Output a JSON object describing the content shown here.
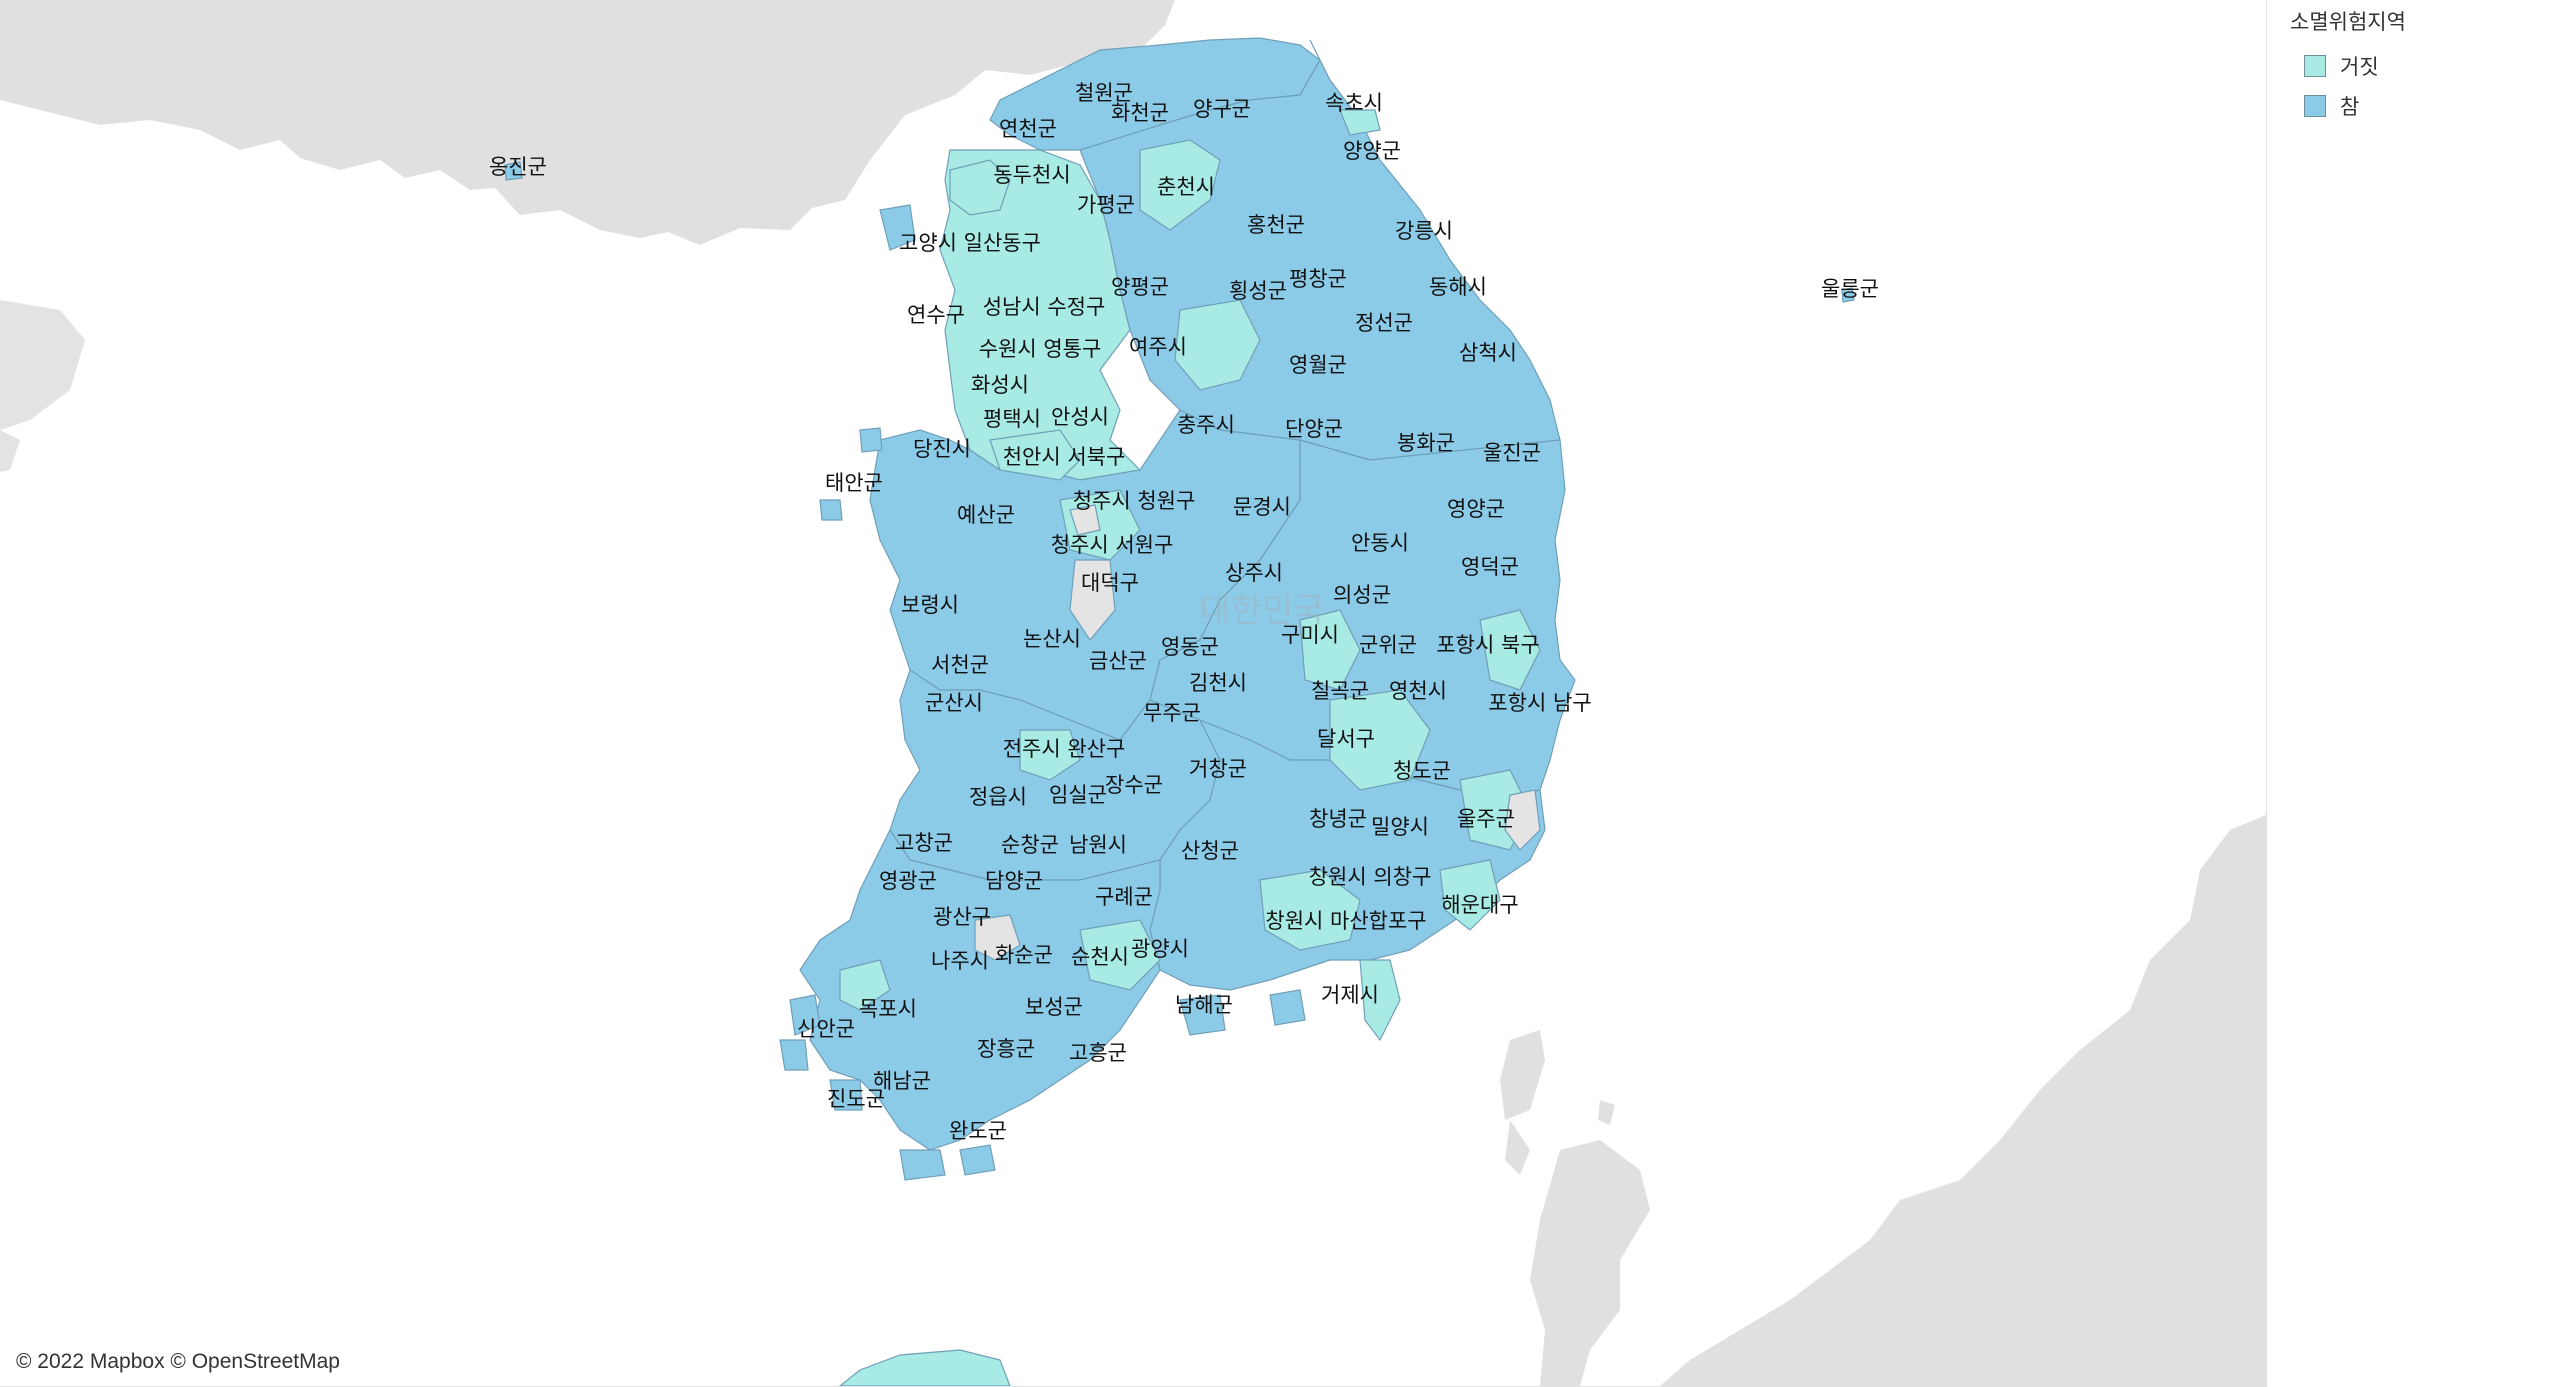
{
  "legend": {
    "title": "소멸위험지역",
    "items": [
      {
        "label": "거짓",
        "color": "#a7ebe4"
      },
      {
        "label": "참",
        "color": "#8ccbe8"
      }
    ]
  },
  "attribution": "© 2022 Mapbox © OpenStreetMap",
  "map_watermark": "대한민국",
  "colors": {
    "land_background": "#e0e0e0",
    "sea": "#ffffff",
    "risk_true": "#8ccbe8",
    "risk_false": "#a7ebe4",
    "no_data": "#e4e4e4",
    "border": "#6f9fb8"
  },
  "regions": [
    {
      "name": "철원군",
      "risk": true
    },
    {
      "name": "화천군",
      "risk": true
    },
    {
      "name": "양구군",
      "risk": true
    },
    {
      "name": "속초시",
      "risk": false
    },
    {
      "name": "연천군",
      "risk": true
    },
    {
      "name": "옹진군",
      "risk": true
    },
    {
      "name": "동두천시",
      "risk": false
    },
    {
      "name": "춘천시",
      "risk": false
    },
    {
      "name": "양양군",
      "risk": true
    },
    {
      "name": "가평군",
      "risk": true
    },
    {
      "name": "홍천군",
      "risk": true
    },
    {
      "name": "강릉시",
      "risk": true
    },
    {
      "name": "고양시 일산동구",
      "risk": false
    },
    {
      "name": "양평군",
      "risk": true
    },
    {
      "name": "횡성군",
      "risk": true
    },
    {
      "name": "평창군",
      "risk": true
    },
    {
      "name": "동해시",
      "risk": true
    },
    {
      "name": "울릉군",
      "risk": true
    },
    {
      "name": "연수구",
      "risk": false
    },
    {
      "name": "성남시 수정구",
      "risk": false
    },
    {
      "name": "정선군",
      "risk": true
    },
    {
      "name": "수원시 영통구",
      "risk": false
    },
    {
      "name": "여주시",
      "risk": true
    },
    {
      "name": "삼척시",
      "risk": true
    },
    {
      "name": "영월군",
      "risk": true
    },
    {
      "name": "화성시",
      "risk": false
    },
    {
      "name": "평택시",
      "risk": false
    },
    {
      "name": "안성시",
      "risk": false
    },
    {
      "name": "충주시",
      "risk": true
    },
    {
      "name": "단양군",
      "risk": true
    },
    {
      "name": "당진시",
      "risk": true
    },
    {
      "name": "봉화군",
      "risk": true
    },
    {
      "name": "울진군",
      "risk": true
    },
    {
      "name": "천안시 서북구",
      "risk": false
    },
    {
      "name": "태안군",
      "risk": true
    },
    {
      "name": "청주시 청원구",
      "risk": false
    },
    {
      "name": "예산군",
      "risk": true
    },
    {
      "name": "문경시",
      "risk": true
    },
    {
      "name": "영양군",
      "risk": true
    },
    {
      "name": "청주시 서원구",
      "risk": false
    },
    {
      "name": "안동시",
      "risk": true
    },
    {
      "name": "대덕구",
      "risk": false
    },
    {
      "name": "상주시",
      "risk": true
    },
    {
      "name": "영덕군",
      "risk": true
    },
    {
      "name": "의성군",
      "risk": true
    },
    {
      "name": "보령시",
      "risk": true
    },
    {
      "name": "구미시",
      "risk": false
    },
    {
      "name": "논산시",
      "risk": true
    },
    {
      "name": "군위군",
      "risk": true
    },
    {
      "name": "포항시 북구",
      "risk": false
    },
    {
      "name": "영동군",
      "risk": true
    },
    {
      "name": "금산군",
      "risk": true
    },
    {
      "name": "서천군",
      "risk": true
    },
    {
      "name": "김천시",
      "risk": true
    },
    {
      "name": "칠곡군",
      "risk": false
    },
    {
      "name": "영천시",
      "risk": true
    },
    {
      "name": "포항시 남구",
      "risk": false
    },
    {
      "name": "군산시",
      "risk": true
    },
    {
      "name": "무주군",
      "risk": true
    },
    {
      "name": "전주시 완산구",
      "risk": false
    },
    {
      "name": "달서구",
      "risk": false
    },
    {
      "name": "거창군",
      "risk": true
    },
    {
      "name": "청도군",
      "risk": true
    },
    {
      "name": "장수군",
      "risk": true
    },
    {
      "name": "임실군",
      "risk": true
    },
    {
      "name": "정읍시",
      "risk": true
    },
    {
      "name": "울주군",
      "risk": false
    },
    {
      "name": "창녕군",
      "risk": true
    },
    {
      "name": "밀양시",
      "risk": true
    },
    {
      "name": "고창군",
      "risk": true
    },
    {
      "name": "순창군",
      "risk": true
    },
    {
      "name": "남원시",
      "risk": true
    },
    {
      "name": "산청군",
      "risk": true
    },
    {
      "name": "창원시 의창구",
      "risk": false
    },
    {
      "name": "영광군",
      "risk": true
    },
    {
      "name": "담양군",
      "risk": true
    },
    {
      "name": "구례군",
      "risk": true
    },
    {
      "name": "해운대구",
      "risk": false
    },
    {
      "name": "광산구",
      "risk": false
    },
    {
      "name": "창원시 마산합포구",
      "risk": false
    },
    {
      "name": "광양시",
      "risk": false
    },
    {
      "name": "나주시",
      "risk": true
    },
    {
      "name": "화순군",
      "risk": true
    },
    {
      "name": "순천시",
      "risk": false
    },
    {
      "name": "거제시",
      "risk": false
    },
    {
      "name": "목포시",
      "risk": false
    },
    {
      "name": "보성군",
      "risk": true
    },
    {
      "name": "남해군",
      "risk": true
    },
    {
      "name": "신안군",
      "risk": true
    },
    {
      "name": "장흥군",
      "risk": true
    },
    {
      "name": "고흥군",
      "risk": true
    },
    {
      "name": "해남군",
      "risk": true
    },
    {
      "name": "진도군",
      "risk": true
    },
    {
      "name": "완도군",
      "risk": true
    }
  ]
}
